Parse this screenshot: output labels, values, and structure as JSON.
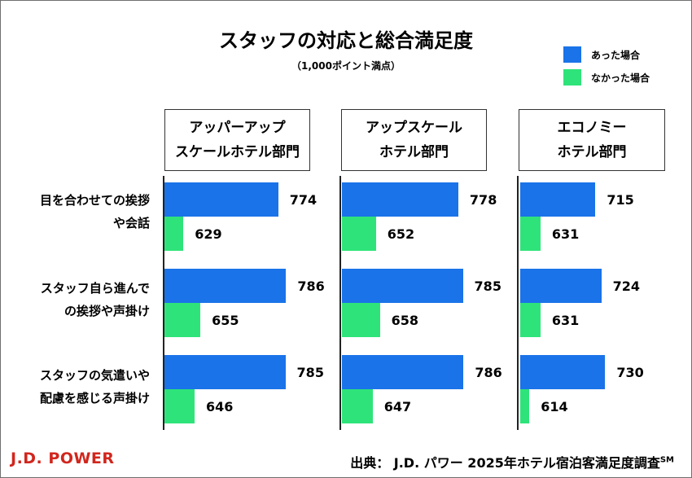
{
  "chart_data": {
    "type": "bar",
    "orientation": "horizontal",
    "title": "スタッフの対応と総合満足度",
    "subtitle": "（1,000ポイント満点）",
    "legend_position": "top-right",
    "series": [
      {
        "name": "あった場合",
        "color": "#1a73e8"
      },
      {
        "name": "なかった場合",
        "color": "#2ee47a"
      }
    ],
    "categories": [
      [
        "目を合わせての挨拶",
        "や会話"
      ],
      [
        "スタッフ自ら進んで",
        "の挨拶や声掛け"
      ],
      [
        "スタッフの気遣いや",
        "配慮を感じる声掛け"
      ]
    ],
    "panels": [
      {
        "name_lines": [
          "アッパーアップ",
          "スケールホテル部門"
        ],
        "values": [
          [
            774,
            629
          ],
          [
            786,
            655
          ],
          [
            785,
            646
          ]
        ]
      },
      {
        "name_lines": [
          "アップスケール",
          "ホテル部門"
        ],
        "values": [
          [
            778,
            652
          ],
          [
            785,
            658
          ],
          [
            786,
            647
          ]
        ]
      },
      {
        "name_lines": [
          "エコノミー",
          "ホテル部門"
        ],
        "values": [
          [
            715,
            631
          ],
          [
            724,
            631
          ],
          [
            730,
            614
          ]
        ]
      }
    ],
    "xlim": [
      600,
      800
    ]
  },
  "footer": {
    "logo": "J.D. POWER",
    "source": "出典： J.D. パワー 2025年ホテル宿泊客満足度調査",
    "source_mark": "SM"
  }
}
